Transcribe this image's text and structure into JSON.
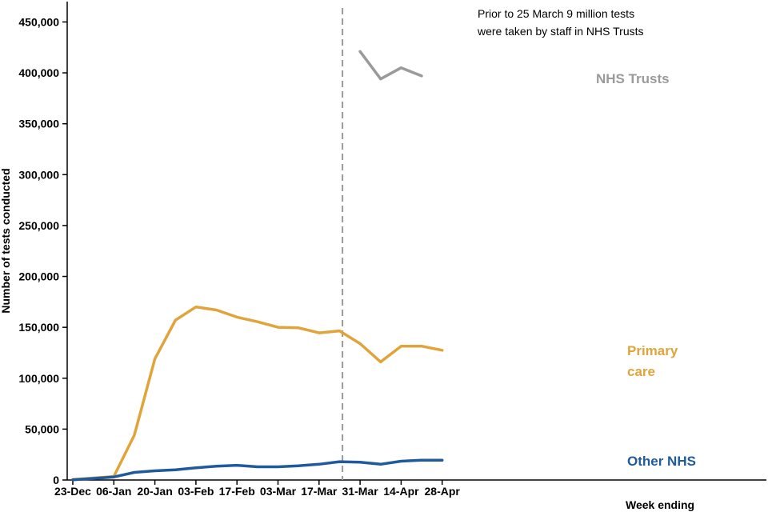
{
  "chart_data": {
    "type": "line",
    "ylabel": "Number of tests conducted",
    "xlabel": "Week ending",
    "ylim": [
      0,
      470000
    ],
    "yticks": [
      0,
      50000,
      100000,
      150000,
      200000,
      250000,
      300000,
      350000,
      400000,
      450000
    ],
    "ytick_labels": [
      "0",
      "50,000",
      "100,000",
      "150,000",
      "200,000",
      "250,000",
      "300,000",
      "350,000",
      "400,000",
      "450,000"
    ],
    "x_tick_labels": [
      "23-Dec",
      "06-Jan",
      "20-Jan",
      "03-Feb",
      "17-Feb",
      "03-Mar",
      "17-Mar",
      "31-Mar",
      "14-Apr",
      "28-Apr"
    ],
    "weeks": [
      "23-Dec",
      "30-Dec",
      "06-Jan",
      "13-Jan",
      "20-Jan",
      "27-Jan",
      "03-Feb",
      "10-Feb",
      "17-Feb",
      "24-Feb",
      "03-Mar",
      "10-Mar",
      "17-Mar",
      "24-Mar",
      "31-Mar",
      "07-Apr",
      "14-Apr",
      "21-Apr",
      "28-Apr"
    ],
    "series": [
      {
        "name": "Primary care",
        "label_lines": [
          "Primary",
          "care"
        ],
        "color": "#E0A43A",
        "values": [
          500,
          2000,
          3500,
          44000,
          119000,
          157000,
          170000,
          167000,
          160000,
          155500,
          150000,
          149500,
          144500,
          146500,
          134000,
          116000,
          131500,
          131500,
          127500
        ]
      },
      {
        "name": "Other NHS",
        "label_lines": [
          "Other NHS"
        ],
        "color": "#1F5A9E",
        "values": [
          200,
          1500,
          3000,
          7500,
          9000,
          10000,
          12000,
          13500,
          14500,
          13000,
          13000,
          14000,
          15500,
          18000,
          17500,
          15500,
          18500,
          19500,
          19500
        ]
      },
      {
        "name": "NHS Trusts",
        "label_lines": [
          "NHS Trusts"
        ],
        "color": "#9A9A9A",
        "start_index": 14,
        "values": [
          421000,
          394000,
          405000,
          397000
        ]
      }
    ],
    "reference_line": {
      "position_week": "25-Mar",
      "style": "dashed",
      "color": "#999999"
    },
    "annotation": {
      "lines": [
        "Prior to 25 March 9 million tests",
        "were taken by staff in NHS Trusts"
      ]
    },
    "grid": false,
    "legend": "direct labels at line ends"
  }
}
